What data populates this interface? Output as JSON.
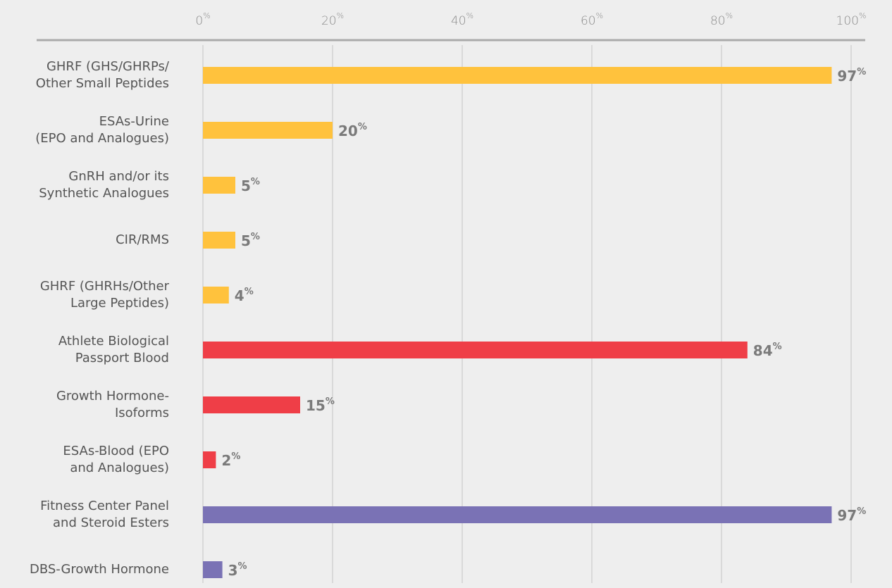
{
  "chart_data": {
    "type": "bar",
    "orientation": "horizontal",
    "categories": [
      "GHRF (GHS/GHRPs/\nOther Small Peptides",
      "ESAs-Urine\n(EPO and Analogues)",
      "GnRH and/or its\nSynthetic Analogues",
      "CIR/RMS",
      "GHRF (GHRHs/Other\nLarge Peptides)",
      "Athlete Biological\nPassport Blood",
      "Growth Hormone-\nIsoforms",
      "ESAs-Blood (EPO\nand Analogues)",
      "Fitness Center Panel\nand Steroid Esters",
      "DBS-Growth Hormone"
    ],
    "values": [
      97,
      20,
      5,
      5,
      4,
      84,
      15,
      2,
      97,
      3
    ],
    "value_labels": [
      "97%",
      "20%",
      "5%",
      "5%",
      "4%",
      "84%",
      "15%",
      "2%",
      "97%",
      "3%"
    ],
    "colors": [
      "#ffc23d",
      "#ffc23d",
      "#ffc23d",
      "#ffc23d",
      "#ffc23d",
      "#ef3e47",
      "#ef3e47",
      "#ef3e47",
      "#7a72b5",
      "#7a72b5"
    ],
    "xlim": [
      0,
      100
    ],
    "xticks": [
      {
        "value": 0,
        "label": "0%"
      },
      {
        "value": 20,
        "label": "20%"
      },
      {
        "value": 40,
        "label": "40%"
      },
      {
        "value": 60,
        "label": "60%"
      },
      {
        "value": 80,
        "label": "80%"
      },
      {
        "value": 100,
        "label": "100%"
      }
    ],
    "grid": true
  }
}
